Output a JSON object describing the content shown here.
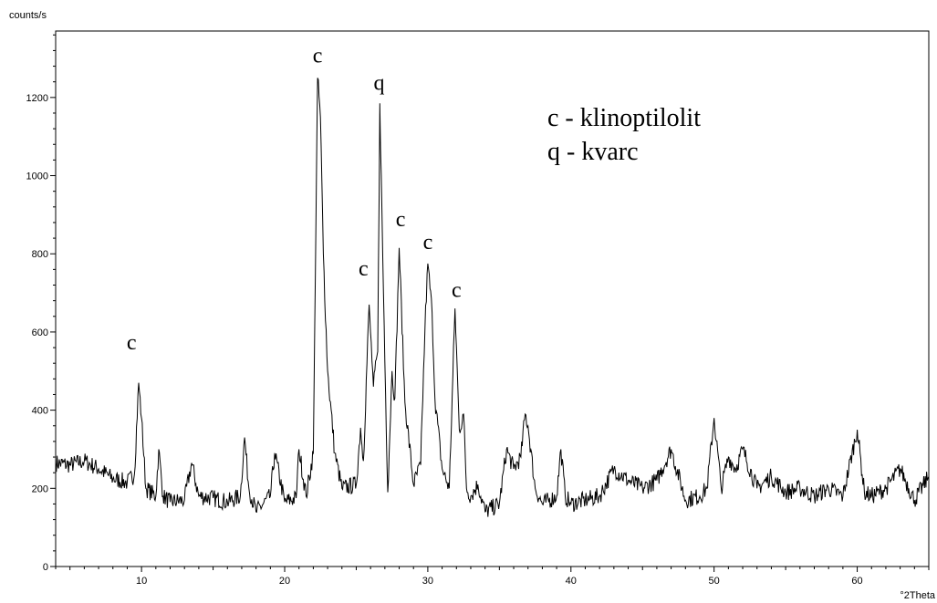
{
  "chart_data": {
    "type": "line",
    "ylabel": "counts/s",
    "xlabel": "°2Theta",
    "xlim": [
      4,
      65
    ],
    "ylim": [
      0,
      1370
    ],
    "x_ticks": [
      10,
      20,
      30,
      40,
      50,
      60
    ],
    "y_ticks": [
      0,
      200,
      400,
      600,
      800,
      1000,
      1200
    ],
    "grid": false,
    "series": [
      {
        "x": [
          4.0,
          5.0,
          6.0,
          7.0,
          8.0,
          9.0,
          9.5,
          9.8,
          10.0,
          10.3,
          11.0,
          11.2,
          11.5,
          12.0,
          13.0,
          13.5,
          14.0,
          15.0,
          16.0,
          16.9,
          17.2,
          17.5,
          18.0,
          19.0,
          19.3,
          20.0,
          20.8,
          21.0,
          21.5,
          22.0,
          22.3,
          22.5,
          22.7,
          23.0,
          23.5,
          24.0,
          25.0,
          25.3,
          25.5,
          25.9,
          26.0,
          26.2,
          26.5,
          26.65,
          26.9,
          27.2,
          27.5,
          27.7,
          28.0,
          28.4,
          29.0,
          29.5,
          29.8,
          30.0,
          30.3,
          30.5,
          31.0,
          31.5,
          31.9,
          32.2,
          32.5,
          32.7,
          33.0,
          33.5,
          34.0,
          35.0,
          35.5,
          36.0,
          36.5,
          36.8,
          37.0,
          37.5,
          38.0,
          39.0,
          39.3,
          39.6,
          40.0,
          41.0,
          42.0,
          43.0,
          44.0,
          45.0,
          46.0,
          47.0,
          48.0,
          49.0,
          49.5,
          50.0,
          50.5,
          51.0,
          51.5,
          52.0,
          53.0,
          54.0,
          55.0,
          56.0,
          57.0,
          58.0,
          59.0,
          60.0,
          60.5,
          61.0,
          62.0,
          63.0,
          64.0,
          65.0
        ],
        "y": [
          265,
          260,
          270,
          250,
          225,
          215,
          235,
          470,
          380,
          200,
          180,
          300,
          180,
          165,
          170,
          265,
          180,
          175,
          165,
          180,
          330,
          200,
          140,
          180,
          290,
          165,
          175,
          300,
          180,
          290,
          1250,
          1150,
          800,
          500,
          290,
          200,
          210,
          355,
          270,
          670,
          600,
          460,
          550,
          1185,
          700,
          190,
          500,
          430,
          815,
          420,
          210,
          260,
          610,
          775,
          650,
          430,
          250,
          200,
          660,
          350,
          390,
          200,
          180,
          210,
          140,
          160,
          300,
          250,
          280,
          390,
          360,
          200,
          160,
          180,
          300,
          180,
          160,
          170,
          180,
          250,
          220,
          200,
          220,
          300,
          170,
          180,
          200,
          380,
          200,
          280,
          250,
          300,
          200,
          230,
          190,
          200,
          180,
          200,
          180,
          350,
          190,
          180,
          200,
          250,
          170,
          230
        ]
      }
    ],
    "annotations": [
      {
        "text": "c",
        "x": 9.3,
        "y": 555
      },
      {
        "text": "c",
        "x": 22.3,
        "y": 1290
      },
      {
        "text": "q",
        "x": 26.6,
        "y": 1220
      },
      {
        "text": "c",
        "x": 25.5,
        "y": 745
      },
      {
        "text": "c",
        "x": 28.1,
        "y": 870
      },
      {
        "text": "c",
        "x": 30.0,
        "y": 812
      },
      {
        "text": "c",
        "x": 32.0,
        "y": 690
      }
    ],
    "legend": {
      "position": "top-right",
      "entries": [
        "c - klinoptilolit",
        "q - kvarc"
      ]
    }
  }
}
